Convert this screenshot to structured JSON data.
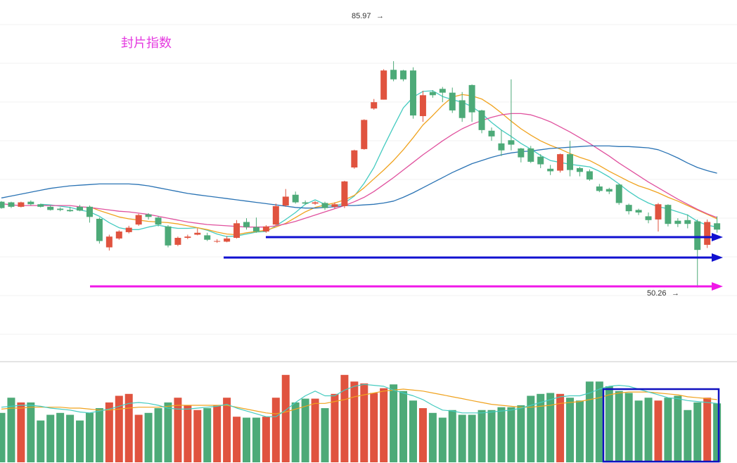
{
  "chart_data": {
    "type": "candlestick",
    "title": "封片指数",
    "highest_label": "85.97",
    "lowest_label": "50.26",
    "grid": "horizontal",
    "colors": {
      "up": "#e0533f",
      "down": "#4daa78",
      "title": "#e53be0",
      "ma_cyan": "#45cbc0",
      "ma_orange": "#f0a31f",
      "ma_pink": "#e0519e",
      "ma_blue": "#2a73b4",
      "support_blue": "#1010d0",
      "support_magenta": "#f018e8",
      "volume_box": "#1010c0",
      "vol_ma_cyan": "#45cbc0",
      "vol_ma_orange": "#f0a31f"
    },
    "candles": [
      [
        63.8,
        62.8,
        63.9,
        62.7
      ],
      [
        63.7,
        63.0,
        63.8,
        62.8
      ],
      [
        63.0,
        63.7,
        63.8,
        62.9
      ],
      [
        63.8,
        63.4,
        64.0,
        63.2
      ],
      [
        63.4,
        63.0,
        63.5,
        62.9
      ],
      [
        63.0,
        62.5,
        63.2,
        62.4
      ],
      [
        62.7,
        62.5,
        62.9,
        62.3
      ],
      [
        62.5,
        62.3,
        63.0,
        62.2
      ],
      [
        63.0,
        62.4,
        63.3,
        62.3
      ],
      [
        63.0,
        61.4,
        63.2,
        60.5
      ],
      [
        61.1,
        57.6,
        61.3,
        57.2
      ],
      [
        56.6,
        58.3,
        58.6,
        56.1
      ],
      [
        58.0,
        59.1,
        59.3,
        57.8
      ],
      [
        59.0,
        59.7,
        60.0,
        58.8
      ],
      [
        60.2,
        61.7,
        61.9,
        60.0
      ],
      [
        61.8,
        61.4,
        62.0,
        61.0
      ],
      [
        61.3,
        60.2,
        61.5,
        59.9
      ],
      [
        59.9,
        56.9,
        60.1,
        56.6
      ],
      [
        57.0,
        58.1,
        58.3,
        56.8
      ],
      [
        58.1,
        58.3,
        58.6,
        57.9
      ],
      [
        58.6,
        58.9,
        59.6,
        58.5
      ],
      [
        58.5,
        57.8,
        58.9,
        57.6
      ],
      [
        57.6,
        57.6,
        57.9,
        57.3
      ],
      [
        57.5,
        58.0,
        58.4,
        57.4
      ],
      [
        58.1,
        60.4,
        60.9,
        58.0
      ],
      [
        60.6,
        59.8,
        61.2,
        59.4
      ],
      [
        59.8,
        59.1,
        61.3,
        58.9
      ],
      [
        59.1,
        59.9,
        60.1,
        58.9
      ],
      [
        60.2,
        63.1,
        63.5,
        60.0
      ],
      [
        63.2,
        64.6,
        65.8,
        63.0
      ],
      [
        64.9,
        63.7,
        65.4,
        63.5
      ],
      [
        63.7,
        63.5,
        64.0,
        63.3
      ],
      [
        63.5,
        63.7,
        63.9,
        63.3
      ],
      [
        63.6,
        62.8,
        63.8,
        62.5
      ],
      [
        63.0,
        63.4,
        63.7,
        62.7
      ],
      [
        63.1,
        67.0,
        67.1,
        62.8
      ],
      [
        69.2,
        71.9,
        72.0,
        69.0
      ],
      [
        72.1,
        76.7,
        76.8,
        72.0
      ],
      [
        78.5,
        79.5,
        80.0,
        78.3
      ],
      [
        79.9,
        84.5,
        84.7,
        79.9
      ],
      [
        84.6,
        83.1,
        85.97,
        82.8
      ],
      [
        84.5,
        83.1,
        84.6,
        82.8
      ],
      [
        84.5,
        77.4,
        85.0,
        76.9
      ],
      [
        77.3,
        80.6,
        81.3,
        76.4
      ],
      [
        81.1,
        80.6,
        81.4,
        80.2
      ],
      [
        81.6,
        81.0,
        81.9,
        79.5
      ],
      [
        81.0,
        78.2,
        81.8,
        77.8
      ],
      [
        79.8,
        77.0,
        81.1,
        76.4
      ],
      [
        82.2,
        77.9,
        82.3,
        76.4
      ],
      [
        78.2,
        75.1,
        78.3,
        74.6
      ],
      [
        75.0,
        74.1,
        75.5,
        73.4
      ],
      [
        73.0,
        71.9,
        75.1,
        71.0
      ],
      [
        73.5,
        72.8,
        83.1,
        71.9
      ],
      [
        72.2,
        70.8,
        72.3,
        70.0
      ],
      [
        72.2,
        70.1,
        72.6,
        69.9
      ],
      [
        70.9,
        69.7,
        71.3,
        69.1
      ],
      [
        69.0,
        68.6,
        69.6,
        68.0
      ],
      [
        68.7,
        71.3,
        71.4,
        68.4
      ],
      [
        71.3,
        68.8,
        73.4,
        67.8
      ],
      [
        69.1,
        68.5,
        69.3,
        67.8
      ],
      [
        68.6,
        67.3,
        68.9,
        67.1
      ],
      [
        66.2,
        65.5,
        66.6,
        65.3
      ],
      [
        65.8,
        65.4,
        66.0,
        65.0
      ],
      [
        66.5,
        63.6,
        66.6,
        63.3
      ],
      [
        63.3,
        62.3,
        63.5,
        61.8
      ],
      [
        62.5,
        62.1,
        62.7,
        61.7
      ],
      [
        61.5,
        60.9,
        62.1,
        60.4
      ],
      [
        61.0,
        63.4,
        63.6,
        59.1
      ],
      [
        63.3,
        60.3,
        63.4,
        59.9
      ],
      [
        60.8,
        60.3,
        61.2,
        59.8
      ],
      [
        60.9,
        60.3,
        61.8,
        59.6
      ],
      [
        60.7,
        56.2,
        61.0,
        50.26
      ],
      [
        57.0,
        60.6,
        61.0,
        56.5
      ],
      [
        60.4,
        59.4,
        61.5,
        58.9
      ]
    ],
    "moving_averages": [
      {
        "key": "ma_cyan",
        "values": [
          null,
          null,
          null,
          null,
          63.4,
          63.3,
          63.1,
          62.9,
          62.5,
          62.2,
          61.5,
          60.5,
          59.7,
          59.4,
          59.4,
          59.8,
          60.1,
          59.8,
          59.6,
          59.6,
          59.7,
          59.3,
          58.7,
          58.3,
          58.4,
          58.7,
          59.0,
          59.1,
          60.0,
          61.0,
          62.1,
          63.4,
          64.1,
          63.4,
          63.1,
          63.6,
          64.7,
          66.7,
          69.2,
          72.5,
          75.6,
          78.6,
          80.3,
          81.2,
          81.3,
          80.4,
          79.9,
          79.5,
          78.8,
          77.7,
          76.3,
          75.1,
          74.1,
          73.0,
          72.1,
          71.1,
          70.3,
          70.0,
          69.7,
          69.5,
          69.3,
          68.6,
          67.7,
          66.6,
          65.4,
          64.4,
          63.6,
          63.0,
          62.7,
          62.2,
          61.7,
          60.7,
          60.1,
          59.8
        ]
      },
      {
        "key": "ma_orange",
        "values": [
          null,
          null,
          null,
          null,
          null,
          null,
          null,
          null,
          null,
          63.0,
          62.4,
          61.9,
          61.4,
          61.1,
          60.9,
          60.7,
          60.6,
          60.5,
          60.3,
          60.0,
          59.7,
          59.4,
          59.0,
          58.7,
          58.6,
          58.9,
          59.1,
          59.3,
          59.8,
          60.4,
          61.3,
          62.2,
          62.9,
          63.3,
          63.6,
          64.1,
          64.8,
          66.0,
          67.4,
          68.8,
          70.3,
          72.0,
          73.9,
          75.9,
          77.4,
          79.0,
          80.3,
          80.7,
          80.5,
          80.0,
          79.0,
          77.8,
          76.5,
          75.3,
          74.3,
          73.4,
          72.7,
          72.1,
          71.4,
          70.8,
          70.3,
          69.5,
          68.6,
          67.8,
          67.0,
          66.3,
          65.8,
          65.2,
          64.5,
          63.9,
          63.2,
          62.5,
          61.8,
          61.1
        ]
      },
      {
        "key": "ma_pink",
        "values": [
          63.5,
          63.3,
          63.2,
          63.2,
          63.2,
          63.2,
          63.2,
          63.2,
          63.0,
          62.9,
          62.7,
          62.5,
          62.3,
          62.2,
          62.0,
          61.8,
          61.5,
          61.2,
          60.9,
          60.6,
          60.4,
          60.2,
          60.1,
          60.0,
          59.9,
          59.8,
          59.8,
          59.8,
          60.0,
          60.3,
          60.7,
          61.2,
          61.7,
          62.2,
          62.7,
          63.2,
          63.8,
          64.5,
          65.4,
          66.5,
          67.6,
          68.8,
          70.0,
          71.2,
          72.3,
          73.4,
          74.4,
          75.3,
          76.0,
          76.6,
          77.1,
          77.5,
          77.7,
          77.7,
          77.5,
          77.0,
          76.4,
          75.6,
          74.8,
          73.9,
          73.0,
          72.0,
          71.0,
          69.9,
          68.9,
          67.9,
          66.9,
          66.0,
          65.1,
          64.2,
          63.4,
          62.6,
          61.9,
          61.3
        ]
      },
      {
        "key": "ma_blue",
        "values": [
          64.4,
          64.7,
          65.0,
          65.3,
          65.6,
          65.9,
          66.1,
          66.3,
          66.4,
          66.5,
          66.6,
          66.6,
          66.6,
          66.6,
          66.5,
          66.3,
          66.0,
          65.7,
          65.4,
          65.1,
          64.9,
          64.7,
          64.5,
          64.3,
          64.1,
          63.9,
          63.7,
          63.5,
          63.3,
          63.1,
          62.9,
          62.8,
          62.8,
          62.9,
          63.0,
          63.2,
          63.2,
          63.3,
          63.4,
          63.6,
          63.9,
          64.5,
          65.2,
          66.0,
          66.8,
          67.6,
          68.4,
          69.1,
          69.8,
          70.3,
          70.8,
          71.2,
          71.5,
          71.7,
          71.8,
          72.0,
          72.2,
          72.3,
          72.4,
          72.5,
          72.6,
          72.6,
          72.6,
          72.5,
          72.5,
          72.4,
          72.3,
          72.0,
          71.4,
          70.7,
          69.9,
          69.2,
          68.7,
          68.3
        ]
      }
    ],
    "volume": {
      "values": [
        52,
        68,
        63,
        63,
        44,
        50,
        52,
        50,
        44,
        52,
        57,
        63,
        70,
        72,
        50,
        52,
        57,
        63,
        68,
        60,
        55,
        57,
        60,
        68,
        48,
        47,
        47,
        48,
        68,
        92,
        63,
        67,
        67,
        57,
        72,
        92,
        85,
        83,
        73,
        78,
        82,
        75,
        65,
        57,
        52,
        47,
        55,
        50,
        50,
        55,
        55,
        58,
        58,
        60,
        70,
        72,
        73,
        72,
        68,
        65,
        85,
        85,
        80,
        75,
        73,
        65,
        68,
        65,
        68,
        70,
        55,
        63,
        68,
        62
      ],
      "ma_cyan": [
        58,
        59,
        60,
        60,
        59,
        57,
        56,
        55,
        53,
        52,
        54,
        56,
        59,
        62,
        63,
        62,
        60,
        57,
        56,
        56,
        57,
        58,
        59,
        61,
        57,
        54,
        51,
        48,
        48,
        55,
        63,
        70,
        75,
        70,
        70,
        76,
        80,
        82,
        81,
        80,
        76,
        73,
        70,
        66,
        60,
        55,
        54,
        52,
        52,
        52,
        53,
        54,
        55,
        57,
        60,
        63,
        66,
        69,
        70,
        70,
        73,
        77,
        80,
        81,
        80,
        77,
        74,
        71,
        68,
        67,
        65,
        64,
        63,
        62
      ],
      "ma_orange": [
        56,
        57,
        57,
        58,
        58,
        58,
        58,
        57,
        57,
        56,
        55,
        55,
        56,
        57,
        58,
        58,
        58,
        59,
        60,
        60,
        60,
        60,
        60,
        60,
        58,
        56,
        54,
        52,
        51,
        53,
        56,
        59,
        62,
        62,
        64,
        66,
        69,
        71,
        73,
        75,
        76,
        77,
        76,
        75,
        73,
        71,
        69,
        67,
        65,
        63,
        61,
        60,
        59,
        58,
        58,
        59,
        60,
        62,
        63,
        64,
        66,
        68,
        71,
        73,
        74,
        74,
        74,
        73,
        72,
        71,
        69,
        68,
        67,
        66
      ]
    }
  }
}
